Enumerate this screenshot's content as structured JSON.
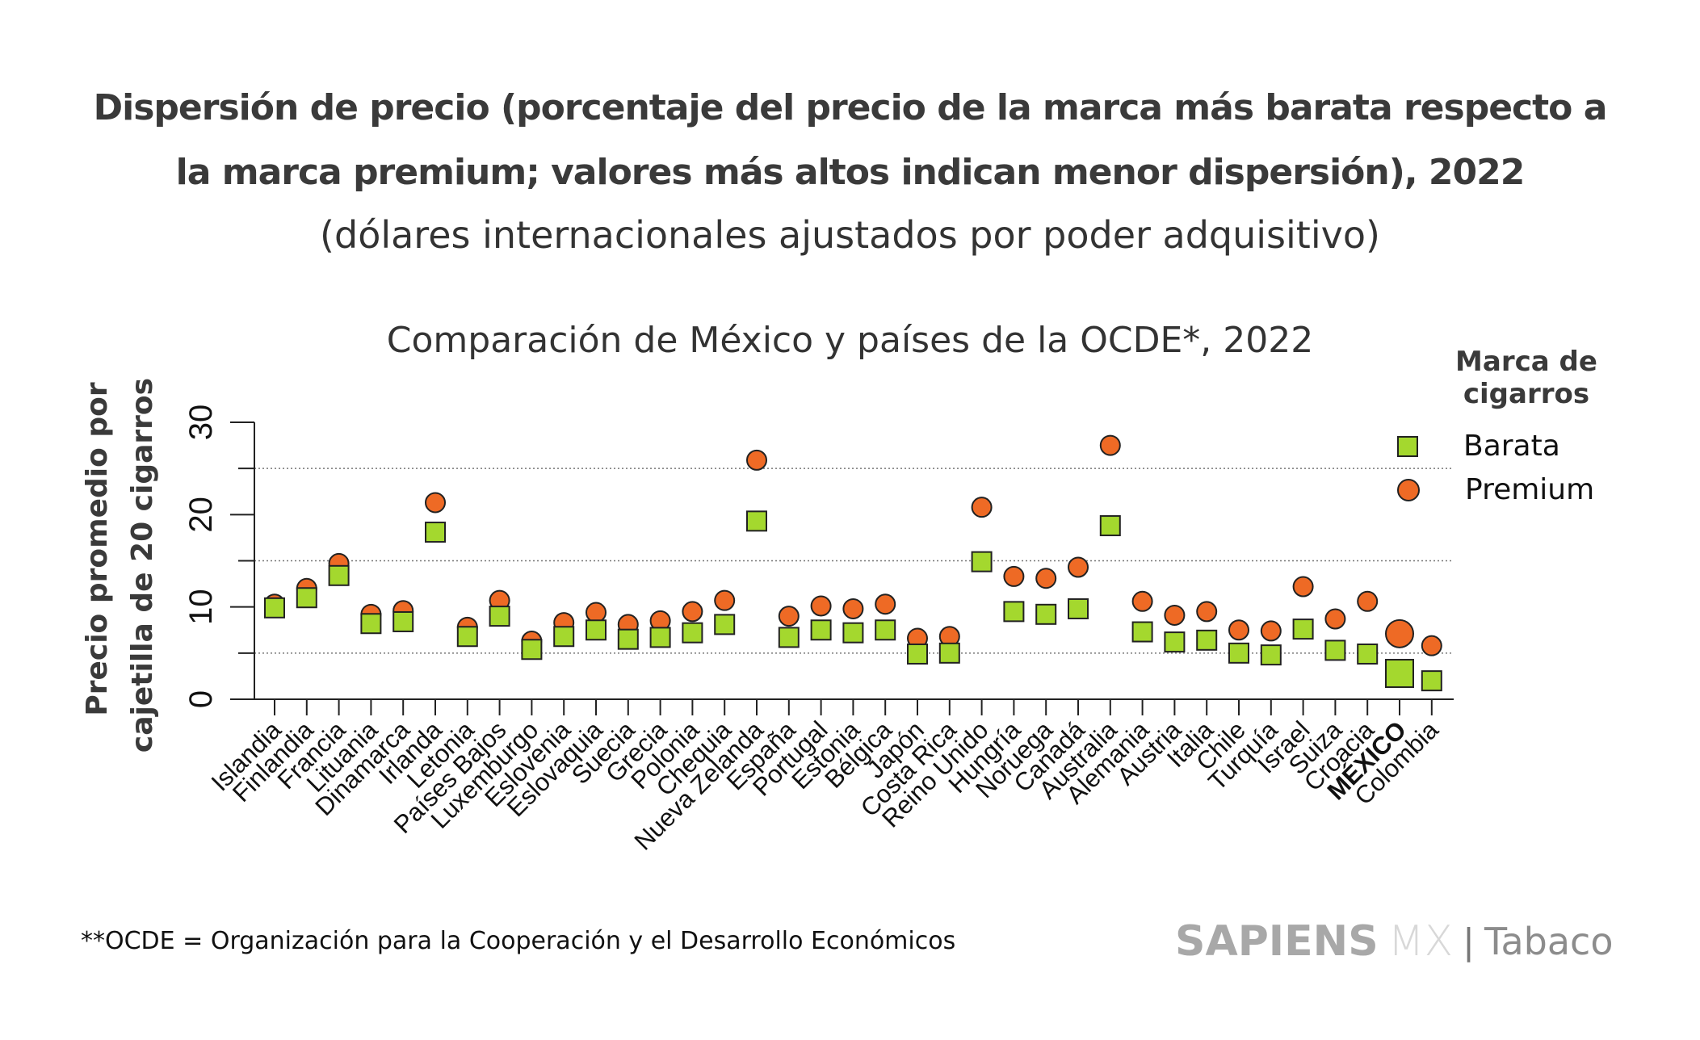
{
  "title_line1": "Dispersión de precio (porcentaje del precio de la marca más barata respecto a",
  "title_line2": "la marca premium; valores más altos indican menor dispersión), 2022",
  "subtitle": "(dólares internacionales ajustados por poder adquisitivo)",
  "footnote": "**OCDE = Organización para la Cooperación y el Desarrollo Económicos",
  "brand": {
    "name": "SAPIENS",
    "suffix": "MX",
    "separator": "|",
    "section": "Tabaco"
  },
  "legend": {
    "title_line1": "Marca de",
    "title_line2": "cigarros",
    "items": [
      {
        "label": "Barata",
        "shape": "square",
        "color": "#a4d82e"
      },
      {
        "label": "Premium",
        "shape": "circle",
        "color": "#ee6a25"
      }
    ]
  },
  "colors": {
    "barata": "#a4d82e",
    "premium": "#ee6a25",
    "outline": "#222222",
    "axis": "#222222",
    "grid": "#777777"
  },
  "chart_data": {
    "type": "scatter",
    "title": "Comparación de México y países de la OCDE*, 2022",
    "xlabel": "",
    "ylabel": "Precio promedio por cajetilla de 20 cigarros",
    "ylabel_line1": "Precio promedio por",
    "ylabel_line2": "cajetilla de 20 cigarros",
    "ylim": [
      0,
      30
    ],
    "yticks": [
      0,
      10,
      20,
      30
    ],
    "grid_y": [
      5,
      15,
      25
    ],
    "legend_position": "top-right",
    "highlight": "MÉXICO",
    "categories": [
      "Islandia",
      "Finlandia",
      "Francia",
      "Lituania",
      "Dinamarca",
      "Irlanda",
      "Letonia",
      "Países Bajos",
      "Luxemburgo",
      "Eslovenia",
      "Eslovaquia",
      "Suecia",
      "Grecia",
      "Polonia",
      "Chequia",
      "Nueva Zelanda",
      "España",
      "Portugal",
      "Estonia",
      "Bélgica",
      "Japón",
      "Costa Rica",
      "Reino Unido",
      "Hungría",
      "Noruega",
      "Canadá",
      "Australia",
      "Alemania",
      "Austria",
      "Italia",
      "Chile",
      "Turquía",
      "Israel",
      "Suiza",
      "Croacia",
      "MÉXICO",
      "Colombia"
    ],
    "series": [
      {
        "name": "Barata",
        "marker": "square",
        "values": [
          9.9,
          11.0,
          13.4,
          8.2,
          8.4,
          18.1,
          6.8,
          9.0,
          5.4,
          6.8,
          7.5,
          6.5,
          6.7,
          7.2,
          8.1,
          19.3,
          6.7,
          7.5,
          7.2,
          7.5,
          4.9,
          5.0,
          14.9,
          9.5,
          9.2,
          9.8,
          18.8,
          7.3,
          6.2,
          6.4,
          5.0,
          4.8,
          7.6,
          5.3,
          4.9,
          2.8,
          2.0
        ]
      },
      {
        "name": "Premium",
        "marker": "circle",
        "values": [
          10.3,
          12.0,
          14.7,
          9.2,
          9.6,
          21.3,
          7.8,
          10.7,
          6.3,
          8.3,
          9.4,
          8.1,
          8.5,
          9.5,
          10.7,
          25.9,
          9.0,
          10.1,
          9.8,
          10.3,
          6.6,
          6.8,
          20.8,
          13.3,
          13.1,
          14.3,
          27.5,
          10.6,
          9.1,
          9.5,
          7.5,
          7.4,
          12.2,
          8.7,
          10.6,
          7.1,
          5.8
        ]
      }
    ]
  }
}
